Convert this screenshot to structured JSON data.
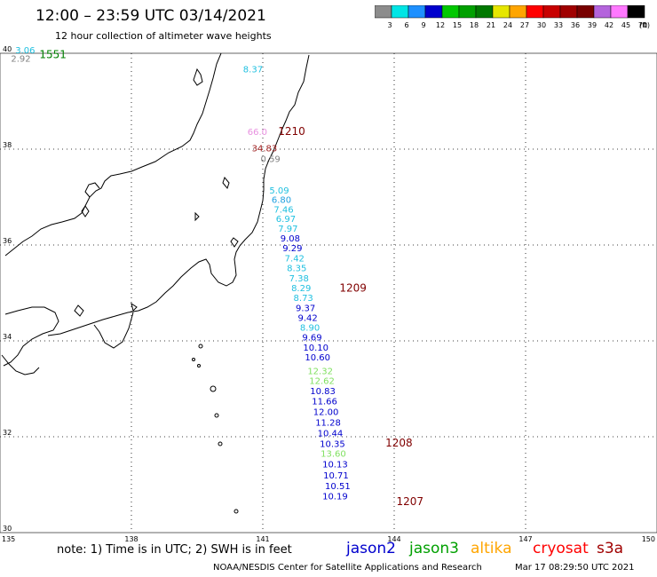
{
  "title": "12:00 – 23:59 UTC 03/14/2021",
  "subtitle": "12 hour collection of altimeter wave heights",
  "legend": {
    "unit": "(ft)",
    "labels": [
      "3",
      "6",
      "9",
      "12",
      "15",
      "18",
      "21",
      "24",
      "27",
      "30",
      "33",
      "36",
      "39",
      "42",
      "45",
      "70"
    ],
    "colors": [
      "#8c8c8c",
      "#00e5e5",
      "#1e90ff",
      "#0000cd",
      "#00c800",
      "#00a000",
      "#007800",
      "#e6e600",
      "#ffa500",
      "#ff0000",
      "#c80000",
      "#a00000",
      "#780000",
      "#b464dc",
      "#ff78ff",
      "#000000"
    ]
  },
  "axes": {
    "lat_labels": [
      "40",
      "38",
      "36",
      "34",
      "32",
      "30"
    ],
    "lon_labels": [
      "135",
      "138",
      "141",
      "144",
      "147",
      "150"
    ]
  },
  "observations": [
    {
      "label": "3.06",
      "color": "#20c0e0",
      "lon": 135.35,
      "lat": 40.0
    },
    {
      "label": "2.92",
      "color": "#808080",
      "lon": 135.25,
      "lat": 39.82
    },
    {
      "label": "8.37",
      "color": "#20c0e0",
      "lon": 140.55,
      "lat": 39.6
    },
    {
      "label": "66.0",
      "color": "#e890e0",
      "lon": 140.65,
      "lat": 38.3
    },
    {
      "label": "34.83",
      "color": "#a02020",
      "lon": 140.75,
      "lat": 37.95
    },
    {
      "label": "0.59",
      "color": "#808080",
      "lon": 140.95,
      "lat": 37.73
    },
    {
      "label": "5.09",
      "color": "#20c0e0",
      "lon": 141.15,
      "lat": 37.07
    },
    {
      "label": "6.80",
      "color": "#20a0e0",
      "lon": 141.2,
      "lat": 36.88
    },
    {
      "label": "7.46",
      "color": "#20c0e0",
      "lon": 141.25,
      "lat": 36.68
    },
    {
      "label": "6.97",
      "color": "#20c0e0",
      "lon": 141.3,
      "lat": 36.48
    },
    {
      "label": "7.97",
      "color": "#20c0e0",
      "lon": 141.35,
      "lat": 36.28
    },
    {
      "label": "9.08",
      "color": "#0000cd",
      "lon": 141.4,
      "lat": 36.07
    },
    {
      "label": "9.29",
      "color": "#0000cd",
      "lon": 141.45,
      "lat": 35.87
    },
    {
      "label": "7.42",
      "color": "#20c0e0",
      "lon": 141.5,
      "lat": 35.66
    },
    {
      "label": "8.35",
      "color": "#20c0e0",
      "lon": 141.55,
      "lat": 35.45
    },
    {
      "label": "7.38",
      "color": "#20c0e0",
      "lon": 141.6,
      "lat": 35.24
    },
    {
      "label": "8.29",
      "color": "#20c0e0",
      "lon": 141.65,
      "lat": 35.04
    },
    {
      "label": "8.73",
      "color": "#20c0e0",
      "lon": 141.7,
      "lat": 34.83
    },
    {
      "label": "9.37",
      "color": "#0000cd",
      "lon": 141.75,
      "lat": 34.62
    },
    {
      "label": "9.42",
      "color": "#0000cd",
      "lon": 141.8,
      "lat": 34.42
    },
    {
      "label": "8.90",
      "color": "#20c0e0",
      "lon": 141.85,
      "lat": 34.21
    },
    {
      "label": "9.69",
      "color": "#0000cd",
      "lon": 141.9,
      "lat": 34.01
    },
    {
      "label": "10.10",
      "color": "#0000cd",
      "lon": 141.92,
      "lat": 33.8
    },
    {
      "label": "10.60",
      "color": "#0000cd",
      "lon": 141.96,
      "lat": 33.59
    },
    {
      "label": "12.32",
      "color": "#80e060",
      "lon": 142.02,
      "lat": 33.31
    },
    {
      "label": "12.62",
      "color": "#80e060",
      "lon": 142.06,
      "lat": 33.1
    },
    {
      "label": "10.83",
      "color": "#0000cd",
      "lon": 142.08,
      "lat": 32.89
    },
    {
      "label": "11.66",
      "color": "#0000cd",
      "lon": 142.12,
      "lat": 32.68
    },
    {
      "label": "12.00",
      "color": "#0000cd",
      "lon": 142.15,
      "lat": 32.45
    },
    {
      "label": "11.28",
      "color": "#0000cd",
      "lon": 142.2,
      "lat": 32.23
    },
    {
      "label": "10.44",
      "color": "#0000cd",
      "lon": 142.25,
      "lat": 32.01
    },
    {
      "label": "10.35",
      "color": "#0000cd",
      "lon": 142.3,
      "lat": 31.79
    },
    {
      "label": "13.60",
      "color": "#80e060",
      "lon": 142.32,
      "lat": 31.58
    },
    {
      "label": "10.13",
      "color": "#0000cd",
      "lon": 142.36,
      "lat": 31.36
    },
    {
      "label": "10.71",
      "color": "#0000cd",
      "lon": 142.38,
      "lat": 31.13
    },
    {
      "label": "10.51",
      "color": "#0000cd",
      "lon": 142.42,
      "lat": 30.91
    },
    {
      "label": "10.19",
      "color": "#0000cd",
      "lon": 142.36,
      "lat": 30.69
    }
  ],
  "pass_times": [
    {
      "label": "1551",
      "color": "#008000",
      "lon": 135.9,
      "lat": 39.9
    },
    {
      "label": "1210",
      "color": "#800000",
      "lon": 141.35,
      "lat": 38.3
    },
    {
      "label": "1209",
      "color": "#800000",
      "lon": 142.75,
      "lat": 35.03
    },
    {
      "label": "1208",
      "color": "#800000",
      "lon": 143.8,
      "lat": 31.8
    },
    {
      "label": "1207",
      "color": "#800000",
      "lon": 144.05,
      "lat": 30.57
    }
  ],
  "note": "note:  1) Time is in UTC;  2) SWH is in feet",
  "satellites": [
    {
      "name": "jason2",
      "color": "#0000cd"
    },
    {
      "name": "jason3",
      "color": "#00a000"
    },
    {
      "name": "altika",
      "color": "#ffa500"
    },
    {
      "name": "cryosat",
      "color": "#ff0000"
    },
    {
      "name": "s3a",
      "color": "#a00000"
    }
  ],
  "footer": "NOAA/NESDIS Center for Satellite Applications and Research",
  "timestamp": "Mar 17 08:29:50 UTC 2021"
}
